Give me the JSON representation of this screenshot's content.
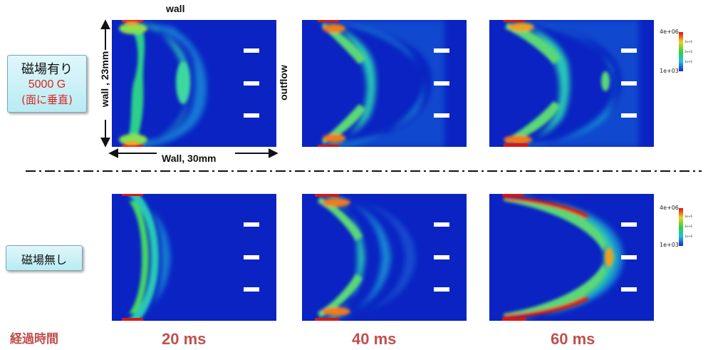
{
  "labels": {
    "wall_top": "wall",
    "wall_left": "wall , 23mm",
    "wall_bottom": "Wall, 30mm",
    "outflow": "outflow",
    "elapsed": "経過時間"
  },
  "row1_label": {
    "line1": "磁場有り",
    "line2": "5000 G",
    "line3": "(面に垂直)"
  },
  "row2_label": {
    "line1": "磁場無し"
  },
  "times": [
    "20 ms",
    "40 ms",
    "60 ms"
  ],
  "colorbar": {
    "max": "4e+06",
    "min": "1e+03",
    "mid1": "3e+6",
    "mid2": "2e+6",
    "mid3": "1e+6"
  },
  "colors": {
    "background": "#0A23C2",
    "time_text": "#C0504D",
    "magnet_text": "#D9261C",
    "label_box": "#cdf1f7",
    "outlet": "#ffffff"
  },
  "dashed_separator": true
}
